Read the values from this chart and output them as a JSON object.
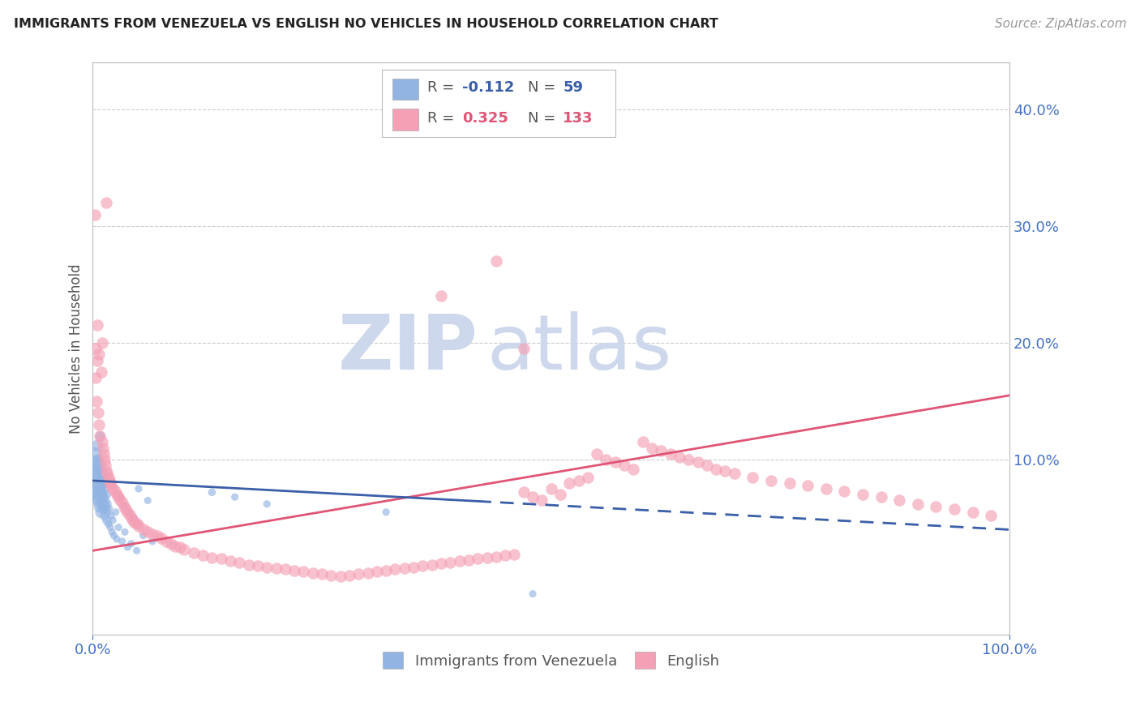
{
  "title": "IMMIGRANTS FROM VENEZUELA VS ENGLISH NO VEHICLES IN HOUSEHOLD CORRELATION CHART",
  "source": "Source: ZipAtlas.com",
  "ylabel": "No Vehicles in Household",
  "yticks": [
    0.0,
    0.1,
    0.2,
    0.3,
    0.4
  ],
  "ytick_labels": [
    "",
    "10.0%",
    "20.0%",
    "30.0%",
    "40.0%"
  ],
  "xlim": [
    0.0,
    1.0
  ],
  "ylim": [
    -0.05,
    0.44
  ],
  "blue_color": "#92b4e3",
  "pink_color": "#f4a0b5",
  "trend_blue_color": "#3a5fa8",
  "trend_pink_color": "#e05575",
  "title_color": "#222222",
  "axis_label_color": "#4472c4",
  "grid_color": "#cccccc",
  "watermark_color": "#cdd8ec",
  "blue_scatter_x": [
    0.003,
    0.004,
    0.005,
    0.005,
    0.006,
    0.006,
    0.007,
    0.007,
    0.008,
    0.008,
    0.009,
    0.009,
    0.01,
    0.01,
    0.011,
    0.011,
    0.012,
    0.012,
    0.013,
    0.013,
    0.014,
    0.015,
    0.015,
    0.016,
    0.016,
    0.017,
    0.018,
    0.019,
    0.02,
    0.021,
    0.022,
    0.023,
    0.025,
    0.026,
    0.028,
    0.03,
    0.032,
    0.034,
    0.035,
    0.038,
    0.04,
    0.042,
    0.045,
    0.048,
    0.05,
    0.055,
    0.06,
    0.065,
    0.003,
    0.004,
    0.005,
    0.006,
    0.007,
    0.008,
    0.13,
    0.155,
    0.19,
    0.32,
    0.48
  ],
  "blue_scatter_y": [
    0.082,
    0.075,
    0.09,
    0.068,
    0.072,
    0.095,
    0.065,
    0.085,
    0.078,
    0.06,
    0.07,
    0.055,
    0.08,
    0.062,
    0.068,
    0.088,
    0.058,
    0.075,
    0.065,
    0.052,
    0.06,
    0.07,
    0.048,
    0.062,
    0.055,
    0.045,
    0.058,
    0.042,
    0.052,
    0.038,
    0.048,
    0.035,
    0.055,
    0.032,
    0.042,
    0.068,
    0.03,
    0.06,
    0.038,
    0.025,
    0.055,
    0.028,
    0.05,
    0.022,
    0.075,
    0.035,
    0.065,
    0.03,
    0.105,
    0.098,
    0.112,
    0.1,
    0.092,
    0.12,
    0.072,
    0.068,
    0.062,
    0.055,
    -0.015
  ],
  "blue_scatter_size": [
    200,
    120,
    100,
    80,
    90,
    80,
    70,
    70,
    65,
    60,
    55,
    50,
    50,
    45,
    45,
    40,
    40,
    38,
    36,
    34,
    32,
    30,
    28,
    26,
    24,
    22,
    20,
    20,
    20,
    20,
    20,
    20,
    20,
    20,
    20,
    20,
    20,
    20,
    20,
    20,
    20,
    20,
    20,
    20,
    20,
    20,
    20,
    20,
    60,
    55,
    50,
    45,
    40,
    35,
    22,
    20,
    20,
    20,
    20
  ],
  "pink_scatter_x": [
    0.002,
    0.003,
    0.004,
    0.005,
    0.006,
    0.007,
    0.008,
    0.009,
    0.01,
    0.011,
    0.012,
    0.013,
    0.014,
    0.015,
    0.016,
    0.017,
    0.018,
    0.019,
    0.02,
    0.022,
    0.024,
    0.026,
    0.028,
    0.03,
    0.032,
    0.034,
    0.036,
    0.038,
    0.04,
    0.042,
    0.044,
    0.046,
    0.048,
    0.05,
    0.055,
    0.06,
    0.065,
    0.07,
    0.075,
    0.08,
    0.085,
    0.09,
    0.095,
    0.1,
    0.11,
    0.12,
    0.13,
    0.14,
    0.15,
    0.16,
    0.17,
    0.18,
    0.19,
    0.2,
    0.21,
    0.22,
    0.23,
    0.24,
    0.25,
    0.26,
    0.27,
    0.28,
    0.29,
    0.3,
    0.31,
    0.32,
    0.33,
    0.34,
    0.35,
    0.36,
    0.37,
    0.38,
    0.39,
    0.4,
    0.41,
    0.42,
    0.43,
    0.44,
    0.45,
    0.46,
    0.47,
    0.48,
    0.49,
    0.5,
    0.51,
    0.52,
    0.53,
    0.54,
    0.55,
    0.56,
    0.57,
    0.58,
    0.59,
    0.6,
    0.61,
    0.62,
    0.63,
    0.64,
    0.65,
    0.66,
    0.67,
    0.68,
    0.69,
    0.7,
    0.72,
    0.74,
    0.76,
    0.78,
    0.8,
    0.82,
    0.84,
    0.86,
    0.88,
    0.9,
    0.92,
    0.94,
    0.96,
    0.98,
    0.003,
    0.005,
    0.007,
    0.01,
    0.015,
    0.44,
    0.47,
    0.38
  ],
  "pink_scatter_y": [
    0.31,
    0.17,
    0.15,
    0.185,
    0.14,
    0.13,
    0.12,
    0.175,
    0.115,
    0.11,
    0.105,
    0.1,
    0.095,
    0.09,
    0.088,
    0.085,
    0.082,
    0.08,
    0.078,
    0.075,
    0.073,
    0.07,
    0.068,
    0.065,
    0.063,
    0.06,
    0.058,
    0.055,
    0.053,
    0.05,
    0.048,
    0.046,
    0.045,
    0.043,
    0.04,
    0.038,
    0.036,
    0.035,
    0.033,
    0.03,
    0.028,
    0.026,
    0.025,
    0.023,
    0.02,
    0.018,
    0.016,
    0.015,
    0.013,
    0.012,
    0.01,
    0.009,
    0.008,
    0.007,
    0.006,
    0.005,
    0.004,
    0.003,
    0.002,
    0.001,
    0.0,
    0.001,
    0.002,
    0.003,
    0.004,
    0.005,
    0.006,
    0.007,
    0.008,
    0.009,
    0.01,
    0.011,
    0.012,
    0.013,
    0.014,
    0.015,
    0.016,
    0.017,
    0.018,
    0.019,
    0.072,
    0.068,
    0.065,
    0.075,
    0.07,
    0.08,
    0.082,
    0.085,
    0.105,
    0.1,
    0.098,
    0.095,
    0.092,
    0.115,
    0.11,
    0.108,
    0.105,
    0.102,
    0.1,
    0.098,
    0.095,
    0.092,
    0.09,
    0.088,
    0.085,
    0.082,
    0.08,
    0.078,
    0.075,
    0.073,
    0.07,
    0.068,
    0.065,
    0.062,
    0.06,
    0.058,
    0.055,
    0.052,
    0.195,
    0.215,
    0.19,
    0.2,
    0.32,
    0.27,
    0.195,
    0.24
  ],
  "blue_trend_y_start": 0.082,
  "blue_trend_y_solid_end_x": 0.42,
  "blue_trend_y_end": 0.04,
  "pink_trend_y_start": 0.022,
  "pink_trend_y_end": 0.155
}
